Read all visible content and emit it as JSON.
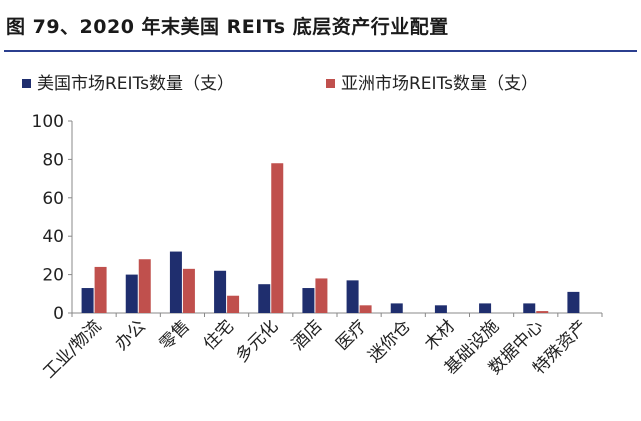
{
  "title": "图 79、2020 年末美国 REITs 底层资产行业配置",
  "chart_data": {
    "type": "bar",
    "categories": [
      "工业/物流",
      "办公",
      "零售",
      "住宅",
      "多元化",
      "酒店",
      "医疗",
      "迷你仓",
      "木材",
      "基础设施",
      "数据中心",
      "特殊资产"
    ],
    "series": [
      {
        "name": "美国市场REITs数量（支）",
        "color": "#1f2e6e",
        "values": [
          13,
          20,
          32,
          22,
          15,
          13,
          17,
          5,
          4,
          5,
          5,
          11
        ]
      },
      {
        "name": "亚洲市场REITs数量（支）",
        "color": "#c0504d",
        "values": [
          24,
          28,
          23,
          9,
          78,
          18,
          4,
          0,
          0,
          0,
          1,
          0
        ]
      }
    ],
    "ylim": [
      0,
      100
    ],
    "yticks": [
      0,
      20,
      40,
      60,
      80,
      100
    ],
    "grid": false,
    "legend": "top"
  }
}
